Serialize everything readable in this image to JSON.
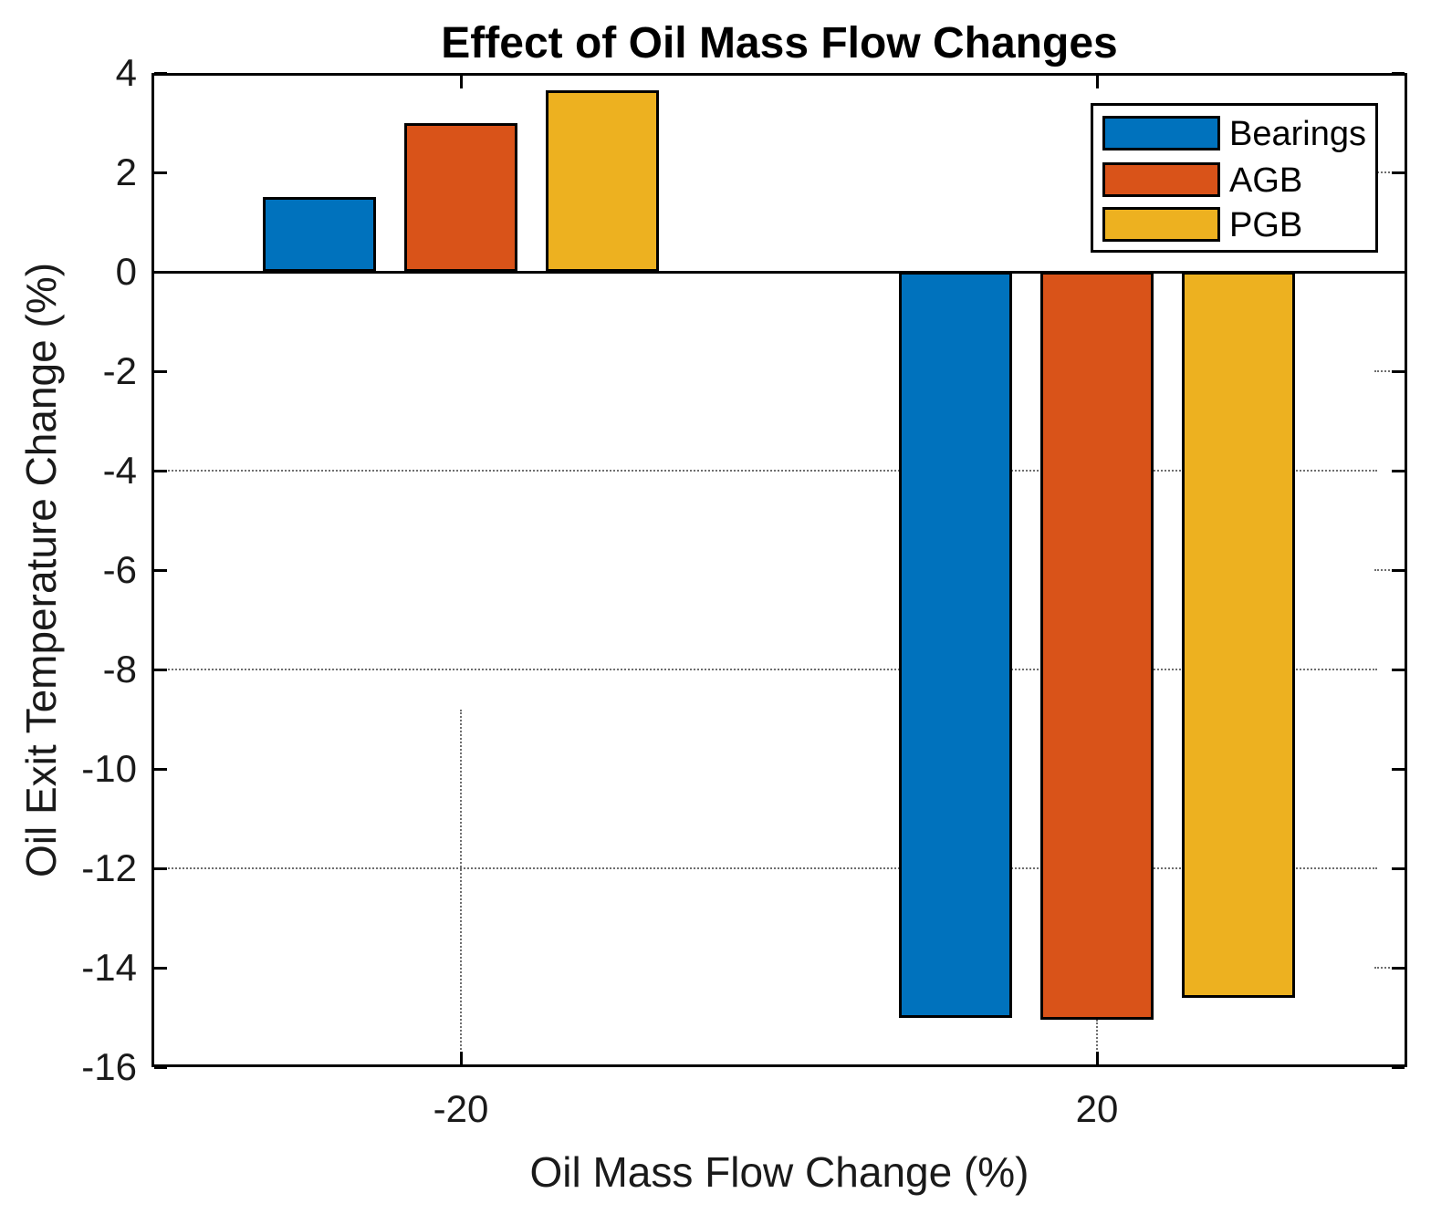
{
  "chart_data": {
    "type": "bar",
    "title": "Effect of Oil Mass Flow Changes",
    "xlabel": "Oil Mass Flow Change (%)",
    "ylabel": "Oil Exit Temperature Change (%)",
    "categories": [
      "-20",
      "20"
    ],
    "series": [
      {
        "name": "Bearings",
        "color": "#0072BD",
        "values": [
          1.5,
          -15.0
        ]
      },
      {
        "name": "AGB",
        "color": "#D95319",
        "values": [
          3.0,
          -15.05
        ]
      },
      {
        "name": "PGB",
        "color": "#EDB120",
        "values": [
          3.65,
          -14.6
        ]
      }
    ],
    "ylim": [
      -16,
      4
    ],
    "yticks": [
      4,
      2,
      0,
      -2,
      -4,
      -6,
      -8,
      -10,
      -12,
      -14,
      -16
    ],
    "xticks": [
      "-20",
      "20"
    ],
    "bar_edge_color": "#000000",
    "baseline_value": 0,
    "grid": {
      "style": "dotted",
      "full_horizontal_at": [
        -4,
        -8,
        -12
      ],
      "right_edge_stubs_at": [
        2,
        -2,
        -6,
        -14
      ],
      "vertical_segments": [
        {
          "category_index": 0,
          "from_y": -8.8,
          "to_y": -16
        },
        {
          "category_index": 1,
          "from_y": -15.05,
          "to_y": -16
        }
      ]
    },
    "legend": {
      "position": "top-right",
      "entries": [
        "Bearings",
        "AGB",
        "PGB"
      ]
    }
  }
}
